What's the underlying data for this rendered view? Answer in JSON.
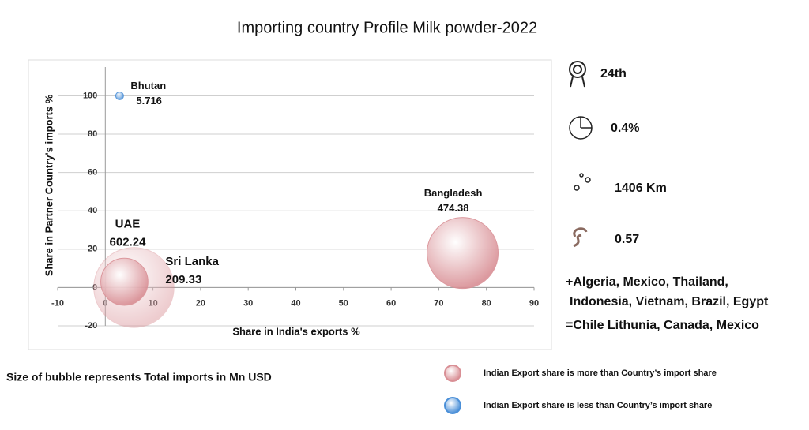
{
  "chart_data": {
    "type": "bubble",
    "title": "Importing country Profile Milk powder-2022",
    "x_label": "Share in India's exports %",
    "y_label": "Share in Partner Country's imports %",
    "xlim": [
      -10,
      90
    ],
    "xticks": [
      -10,
      0,
      10,
      20,
      30,
      40,
      50,
      60,
      70,
      80,
      90
    ],
    "ylim": [
      -20,
      115
    ],
    "yticks": [
      -20,
      0,
      20,
      40,
      60,
      80,
      100
    ],
    "grid": true,
    "series": [
      {
        "name": "Indian Export share is more than Country’s import share",
        "color": "#d98f95",
        "labels": [
          "UAE",
          "Sri Lanka",
          "Bangladesh"
        ],
        "x": [
          6,
          4,
          75
        ],
        "y": [
          0,
          3,
          18
        ],
        "sizes": [
          602.24,
          209.33,
          474.38
        ]
      },
      {
        "name": "Indian Export share is less than Country’s import share",
        "color": "#4a8fd8",
        "labels": [
          "Bhutan"
        ],
        "x": [
          3
        ],
        "y": [
          100
        ],
        "sizes": [
          5.716
        ]
      }
    ],
    "note": "Size of bubble represents Total imports in Mn USD"
  },
  "panel": {
    "stats": [
      "24th",
      "0.4%",
      "1406  Km",
      "0.57"
    ],
    "lines": [
      "+Algeria, Mexico, Thailand,",
      "Indonesia, Vietnam, Brazil, Egypt",
      "=Chile Lithunia, Canada, Mexico"
    ]
  }
}
